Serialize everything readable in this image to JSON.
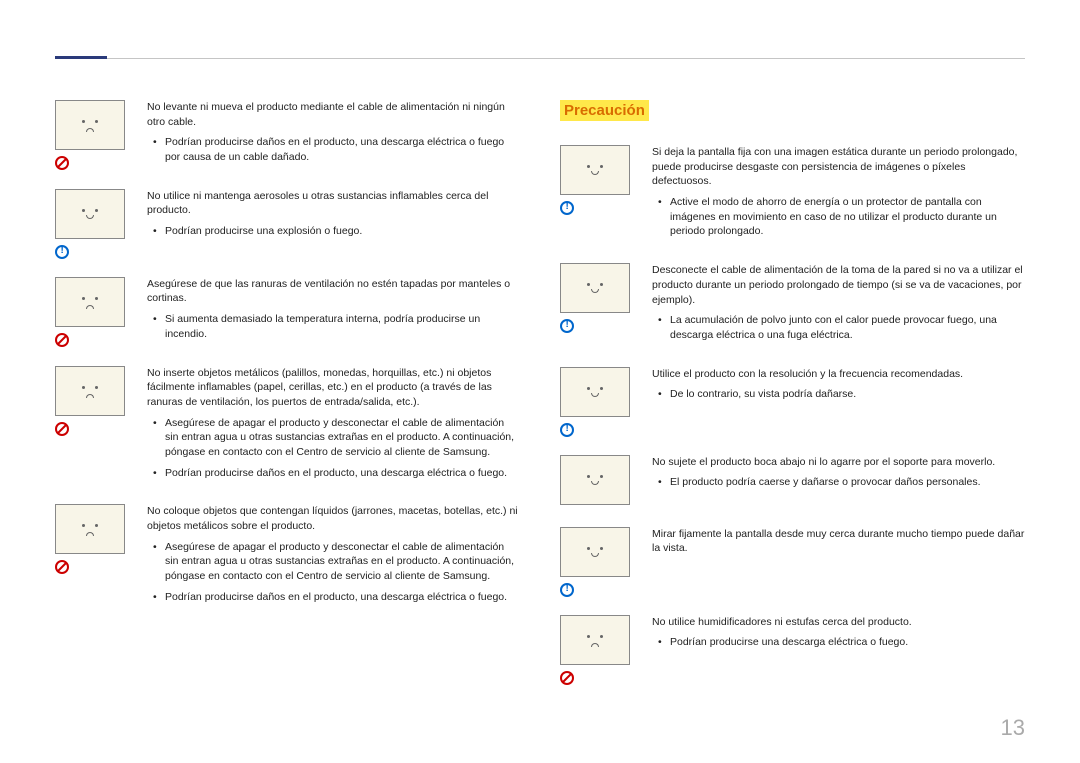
{
  "page_number": "13",
  "section_title": "Precaución",
  "colors": {
    "accent_bar": "#2a3a7a",
    "header_line": "#c5c5c5",
    "precaution_text": "#d96c00",
    "precaution_bg": "#ffe84a",
    "illus_bg": "#f8f5e8",
    "prohibit": "#c00",
    "info": "#0066cc",
    "body_text": "#222",
    "page_num": "#aaa"
  },
  "left": [
    {
      "badge": "prohibit",
      "intro": "No levante ni mueva el producto mediante el cable de alimentación ni ningún otro cable.",
      "bullets": [
        "Podrían producirse daños en el producto, una descarga eléctrica o fuego por causa de un cable dañado."
      ]
    },
    {
      "badge": "info",
      "intro": "No utilice ni mantenga aerosoles u otras sustancias inflamables cerca del producto.",
      "bullets": [
        "Podrían producirse una explosión o fuego."
      ]
    },
    {
      "badge": "prohibit",
      "intro": "Asegúrese de que las ranuras de ventilación no estén tapadas por manteles o cortinas.",
      "bullets": [
        "Si aumenta demasiado la temperatura interna, podría producirse un incendio."
      ]
    },
    {
      "badge": "prohibit",
      "intro": "No inserte objetos metálicos (palillos, monedas, horquillas, etc.) ni objetos fácilmente inflamables (papel, cerillas, etc.) en el producto (a través de las ranuras de ventilación, los puertos de entrada/salida, etc.).",
      "bullets": [
        "Asegúrese de apagar el producto y desconectar el cable de alimentación sin entran agua u otras sustancias extrañas en el producto. A continuación, póngase en contacto con el Centro de servicio al cliente de Samsung.",
        "Podrían producirse daños en el producto, una descarga eléctrica o fuego."
      ]
    },
    {
      "badge": "prohibit",
      "intro": "No coloque objetos que contengan líquidos (jarrones, macetas, botellas, etc.) ni objetos metálicos sobre el producto.",
      "bullets": [
        "Asegúrese de apagar el producto y desconectar el cable de alimentación sin entran agua u otras sustancias extrañas en el producto. A continuación, póngase en contacto con el Centro de servicio al cliente de Samsung.",
        "Podrían producirse daños en el producto, una descarga eléctrica o fuego."
      ]
    }
  ],
  "right": [
    {
      "badge": "info",
      "intro": "Si deja la pantalla fija con una imagen estática durante un periodo prolongado, puede producirse desgaste con persistencia de imágenes o píxeles defectuosos.",
      "bullets": [
        "Active el modo de ahorro de energía o un protector de pantalla con imágenes en movimiento en caso de no utilizar el producto durante un periodo prolongado."
      ]
    },
    {
      "badge": "info",
      "intro": "Desconecte el cable de alimentación de la toma de la pared si no va a utilizar el producto durante un periodo prolongado de tiempo (si se va de vacaciones, por ejemplo).",
      "bullets": [
        "La acumulación de polvo junto con el calor puede provocar fuego, una descarga eléctrica o una fuga eléctrica."
      ]
    },
    {
      "badge": "info",
      "intro": "Utilice el producto con la resolución y la frecuencia recomendadas.",
      "bullets": [
        "De lo contrario, su vista podría dañarse."
      ]
    },
    {
      "badge": "none",
      "intro": "No sujete el producto boca abajo ni lo agarre por el soporte para moverlo.",
      "bullets": [
        "El producto podría caerse y dañarse o provocar daños personales."
      ]
    },
    {
      "badge": "info",
      "intro": "Mirar fijamente la pantalla desde muy cerca durante mucho tiempo puede dañar la vista.",
      "bullets": []
    },
    {
      "badge": "prohibit",
      "intro": "No utilice humidificadores ni estufas cerca del producto.",
      "bullets": [
        "Podrían producirse una descarga eléctrica o fuego."
      ]
    }
  ]
}
